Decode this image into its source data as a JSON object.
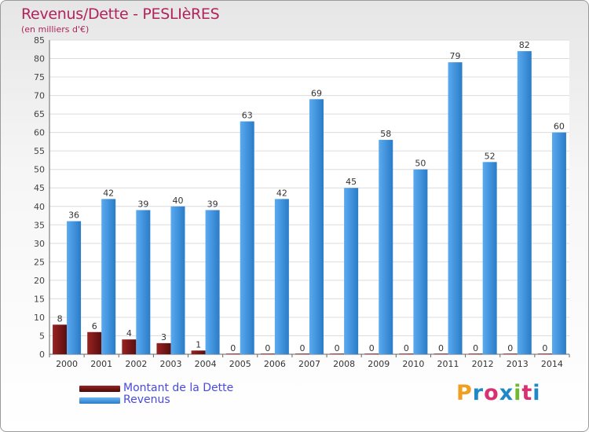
{
  "chart_data": {
    "type": "bar",
    "title": "Revenus/Dette - PESLIèRES",
    "subtitle": "(en milliers d'€)",
    "categories": [
      "2000",
      "2001",
      "2002",
      "2003",
      "2004",
      "2005",
      "2006",
      "2007",
      "2008",
      "2009",
      "2010",
      "2011",
      "2012",
      "2013",
      "2014"
    ],
    "series": [
      {
        "name": "Montant de la Dette",
        "color": "#7a1a1a",
        "values": [
          8,
          6,
          4,
          3,
          1,
          0,
          0,
          0,
          0,
          0,
          0,
          0,
          0,
          0,
          0
        ]
      },
      {
        "name": "Revenus",
        "color": "#3a90dc",
        "values": [
          36,
          42,
          39,
          40,
          39,
          63,
          42,
          69,
          45,
          58,
          50,
          79,
          52,
          82,
          60
        ]
      }
    ],
    "yticks": [
      0,
      5,
      10,
      15,
      20,
      25,
      30,
      35,
      40,
      45,
      50,
      55,
      60,
      65,
      70,
      75,
      80,
      85
    ],
    "ylim": [
      0,
      85
    ],
    "grid": true,
    "legend_position": "bottom-left"
  },
  "logo": {
    "text": "Proxiti"
  }
}
